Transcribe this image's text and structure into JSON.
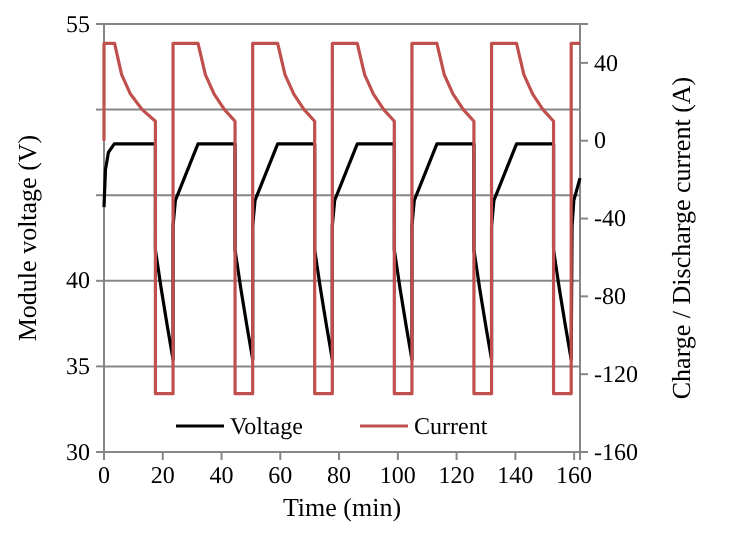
{
  "chart_data": {
    "type": "line",
    "xlabel": "Time (min)",
    "ylabel": "Module voltage (V)",
    "y2label": "Charge / Discharge current (A)",
    "xlim": [
      0,
      162
    ],
    "xticks": [
      0,
      20,
      40,
      60,
      80,
      100,
      120,
      140,
      160
    ],
    "ylim": [
      30,
      55
    ],
    "yticks": [
      30,
      35,
      40,
      {
        "value": 45,
        "label": null
      },
      {
        "value": 50,
        "label": null
      },
      55
    ],
    "y2lim": [
      -160,
      60
    ],
    "y2ticks": [
      -160,
      -120,
      -80,
      -40,
      0,
      40
    ],
    "grid": "y",
    "legend": "bottom",
    "marker": "none",
    "line_style": "solid",
    "series": [
      {
        "name": "Voltage",
        "color": "#000000",
        "x": [
          0,
          0.5,
          1.5,
          3.5,
          17.5,
          17.5,
          19.5,
          21.5,
          23.5,
          23.5,
          24.3,
          32,
          44.6,
          44.6,
          46.6,
          48.6,
          50.6,
          50.6,
          51.4,
          59.1,
          71.7,
          71.7,
          73.7,
          75.7,
          77.7,
          77.7,
          78.5,
          86.2,
          98.8,
          98.8,
          100.8,
          102.8,
          104.8,
          104.8,
          105.6,
          113.3,
          125.9,
          125.9,
          127.9,
          129.9,
          131.9,
          131.9,
          132.7,
          140.4,
          153,
          153,
          155,
          157,
          159,
          159.3,
          159.9,
          162
        ],
        "values": [
          44.3,
          46.5,
          47.5,
          48,
          48,
          41.8,
          39.5,
          37.4,
          35.4,
          43.2,
          44.7,
          48,
          48,
          41.8,
          39.5,
          37.4,
          35.4,
          43.2,
          44.7,
          48,
          48,
          41.8,
          39.5,
          37.4,
          35.4,
          43.2,
          44.7,
          48,
          48,
          41.8,
          39.5,
          37.4,
          35.4,
          43.2,
          44.7,
          48,
          48,
          41.8,
          39.5,
          37.4,
          35.4,
          43.2,
          44.7,
          48,
          48,
          41.8,
          39.5,
          37.4,
          35.4,
          43.2,
          44.7,
          46
        ]
      },
      {
        "name": "Current",
        "color": "#c0504d",
        "axis": "y2",
        "x": [
          0,
          0,
          3.6,
          6,
          9,
          13,
          17.5,
          17.5,
          23.5,
          23.5,
          32,
          34.5,
          37.5,
          41,
          44.6,
          44.6,
          50.6,
          50.6,
          59.1,
          61.6,
          64.6,
          68.1,
          71.7,
          71.7,
          77.7,
          77.7,
          86.2,
          88.7,
          91.7,
          95.2,
          98.8,
          98.8,
          104.8,
          104.8,
          113.3,
          115.8,
          118.8,
          122.3,
          125.9,
          125.9,
          131.9,
          131.9,
          140.4,
          142.9,
          145.9,
          149.4,
          153,
          153,
          159,
          159,
          162
        ],
        "values": [
          0,
          50,
          50,
          34,
          24,
          16,
          10,
          -130,
          -130,
          50,
          50,
          34,
          24,
          16,
          10,
          -130,
          -130,
          50,
          50,
          34,
          24,
          16,
          10,
          -130,
          -130,
          50,
          50,
          34,
          24,
          16,
          10,
          -130,
          -130,
          50,
          50,
          34,
          24,
          16,
          10,
          -130,
          -130,
          50,
          50,
          34,
          24,
          16,
          10,
          -130,
          -130,
          50,
          50
        ]
      }
    ]
  }
}
